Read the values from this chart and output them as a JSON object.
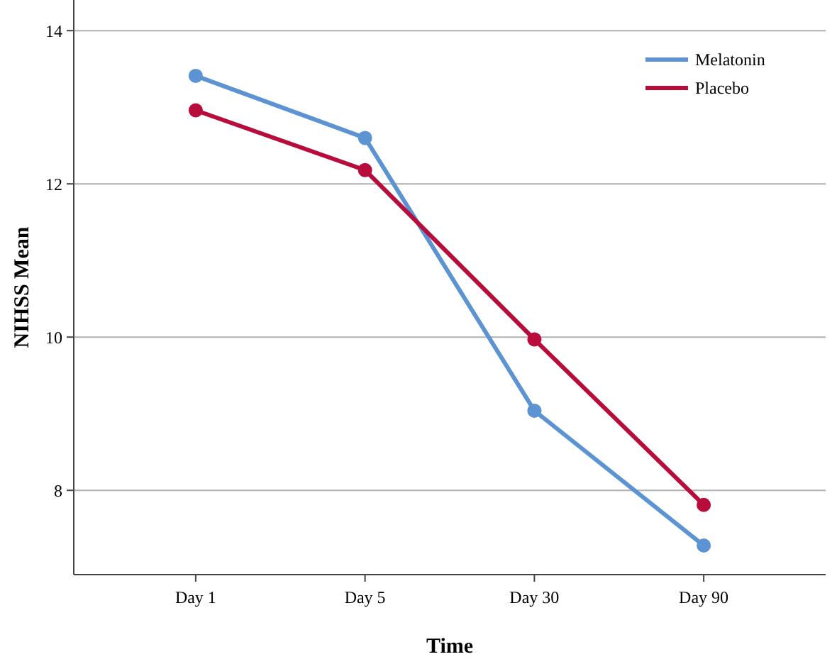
{
  "chart_data": {
    "type": "line",
    "xlabel": "Time",
    "ylabel": "NIHSS Mean",
    "categories": [
      "Day 1",
      "Day 5",
      "Day 30",
      "Day 90"
    ],
    "series": [
      {
        "name": "Melatonin",
        "color": "#5b93d3",
        "values": [
          13.41,
          12.6,
          9.04,
          7.28
        ]
      },
      {
        "name": "Placebo",
        "color": "#b80d3c",
        "values": [
          12.96,
          12.18,
          9.97,
          7.81
        ]
      }
    ],
    "ylim": [
      6.9,
      14.4
    ],
    "yticks": [
      8,
      10,
      12,
      14
    ],
    "grid": "y",
    "legend": "top right",
    "marker": "circle",
    "line_style": "solid"
  }
}
